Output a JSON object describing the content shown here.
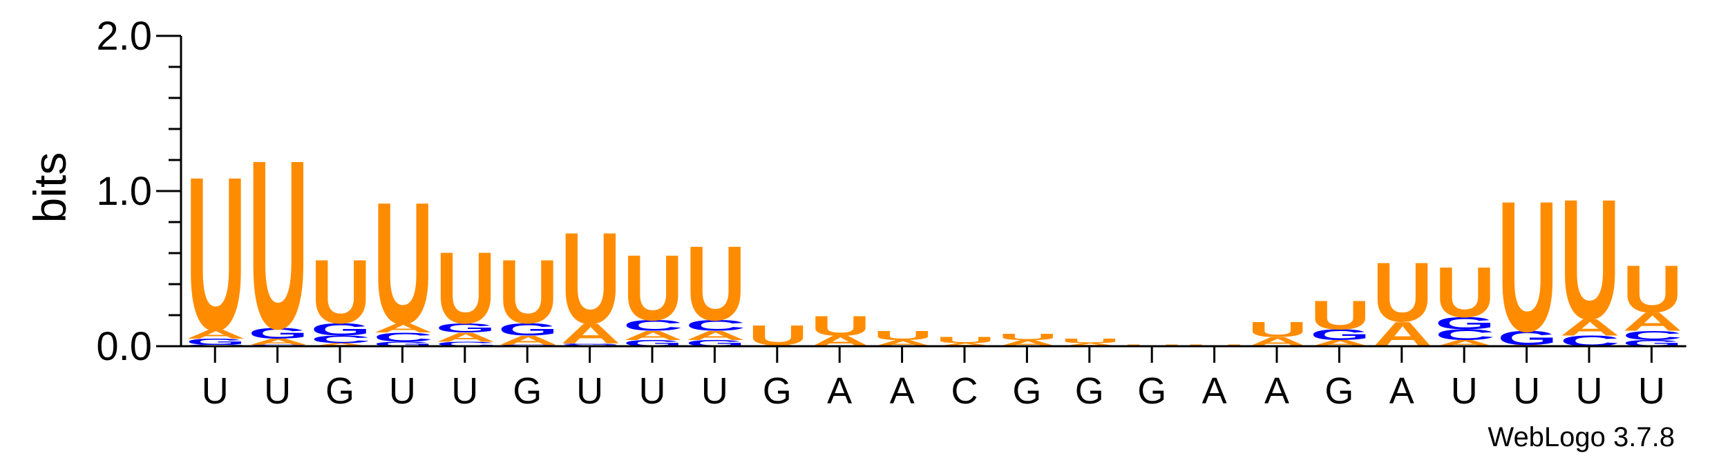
{
  "chart_data": {
    "type": "sequence-logo",
    "ylabel": "bits",
    "ylim": [
      0,
      2.0
    ],
    "yticks": [
      "0.0",
      "1.0",
      "2.0"
    ],
    "xlabels": [
      "U",
      "U",
      "G",
      "U",
      "U",
      "G",
      "U",
      "U",
      "U",
      "G",
      "A",
      "A",
      "C",
      "G",
      "G",
      "G",
      "A",
      "A",
      "G",
      "A",
      "U",
      "U",
      "U",
      "U"
    ],
    "colors": {
      "A": "#ff8c00",
      "U": "#ff8c00",
      "G": "#0000ff",
      "C": "#0000ff"
    },
    "footer": "WebLogo 3.7.8",
    "positions": [
      [
        {
          "l": "C",
          "h": 0.01
        },
        {
          "l": "G",
          "h": 0.04
        },
        {
          "l": "A",
          "h": 0.06
        },
        {
          "l": "U",
          "h": 1.01
        }
      ],
      [
        {
          "l": "C",
          "h": 0.01
        },
        {
          "l": "A",
          "h": 0.04
        },
        {
          "l": "G",
          "h": 0.07
        },
        {
          "l": "U",
          "h": 1.11
        }
      ],
      [
        {
          "l": "A",
          "h": 0.02
        },
        {
          "l": "C",
          "h": 0.05
        },
        {
          "l": "G",
          "h": 0.08
        },
        {
          "l": "U",
          "h": 0.42
        }
      ],
      [
        {
          "l": "G",
          "h": 0.03
        },
        {
          "l": "C",
          "h": 0.06
        },
        {
          "l": "A",
          "h": 0.06
        },
        {
          "l": "U",
          "h": 0.8
        }
      ],
      [
        {
          "l": "C",
          "h": 0.03
        },
        {
          "l": "A",
          "h": 0.06
        },
        {
          "l": "G",
          "h": 0.06
        },
        {
          "l": "U",
          "h": 0.47
        }
      ],
      [
        {
          "l": "C",
          "h": 0.01
        },
        {
          "l": "A",
          "h": 0.06
        },
        {
          "l": "G",
          "h": 0.08
        },
        {
          "l": "U",
          "h": 0.42
        }
      ],
      [
        {
          "l": "C",
          "h": 0.01
        },
        {
          "l": "G",
          "h": 0.01
        },
        {
          "l": "A",
          "h": 0.13
        },
        {
          "l": "U",
          "h": 0.6
        }
      ],
      [
        {
          "l": "G",
          "h": 0.04
        },
        {
          "l": "A",
          "h": 0.06
        },
        {
          "l": "C",
          "h": 0.07
        },
        {
          "l": "U",
          "h": 0.43
        }
      ],
      [
        {
          "l": "G",
          "h": 0.04
        },
        {
          "l": "A",
          "h": 0.06
        },
        {
          "l": "C",
          "h": 0.07
        },
        {
          "l": "U",
          "h": 0.49
        }
      ],
      [
        {
          "l": "A",
          "h": 0.01
        },
        {
          "l": "U",
          "h": 0.13
        }
      ],
      [
        {
          "l": "A",
          "h": 0.07
        },
        {
          "l": "U",
          "h": 0.13
        }
      ],
      [
        {
          "l": "A",
          "h": 0.04
        },
        {
          "l": "U",
          "h": 0.06
        }
      ],
      [
        {
          "l": "A",
          "h": 0.02
        },
        {
          "l": "U",
          "h": 0.04
        }
      ],
      [
        {
          "l": "A",
          "h": 0.04
        },
        {
          "l": "U",
          "h": 0.04
        }
      ],
      [
        {
          "l": "A",
          "h": 0.02
        },
        {
          "l": "U",
          "h": 0.03
        }
      ],
      [
        {
          "l": "U",
          "h": 0.01
        }
      ],
      [
        {
          "l": "U",
          "h": 0.01
        }
      ],
      [
        {
          "l": "A",
          "h": 0.06
        },
        {
          "l": "U",
          "h": 0.1
        }
      ],
      [
        {
          "l": "A",
          "h": 0.04
        },
        {
          "l": "G",
          "h": 0.07
        },
        {
          "l": "U",
          "h": 0.19
        }
      ],
      [
        {
          "l": "A",
          "h": 0.16
        },
        {
          "l": "U",
          "h": 0.39
        }
      ],
      [
        {
          "l": "A",
          "h": 0.04
        },
        {
          "l": "C",
          "h": 0.07
        },
        {
          "l": "G",
          "h": 0.08
        },
        {
          "l": "U",
          "h": 0.33
        }
      ],
      [
        {
          "l": "A",
          "h": 0.01
        },
        {
          "l": "G",
          "h": 0.09
        },
        {
          "l": "U",
          "h": 0.86
        }
      ],
      [
        {
          "l": "C",
          "h": 0.07
        },
        {
          "l": "A",
          "h": 0.11
        },
        {
          "l": "U",
          "h": 0.79
        }
      ],
      [
        {
          "l": "G",
          "h": 0.04
        },
        {
          "l": "C",
          "h": 0.06
        },
        {
          "l": "A",
          "h": 0.12
        },
        {
          "l": "U",
          "h": 0.31
        }
      ]
    ]
  }
}
